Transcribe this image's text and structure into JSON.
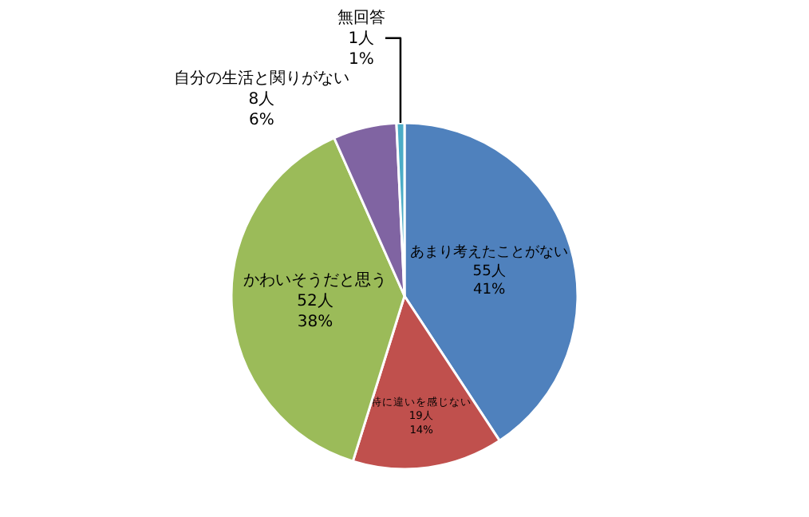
{
  "chart_data": {
    "type": "pie",
    "categories": [
      "あまり考えたことがない",
      "特に違いを感じない",
      "かわいそうだと思う",
      "自分の生活と関りがない",
      "無回答"
    ],
    "values": [
      55,
      19,
      52,
      8,
      1
    ],
    "colors": [
      "#4f81bd",
      "#c0504d",
      "#9bbb59",
      "#8064a2",
      "#4bacc6"
    ],
    "value_labels": [
      "55人\n41%",
      "19人\n14%",
      "52人\n38%",
      "8人\n6%",
      "1人\n1%"
    ],
    "legend": false
  }
}
